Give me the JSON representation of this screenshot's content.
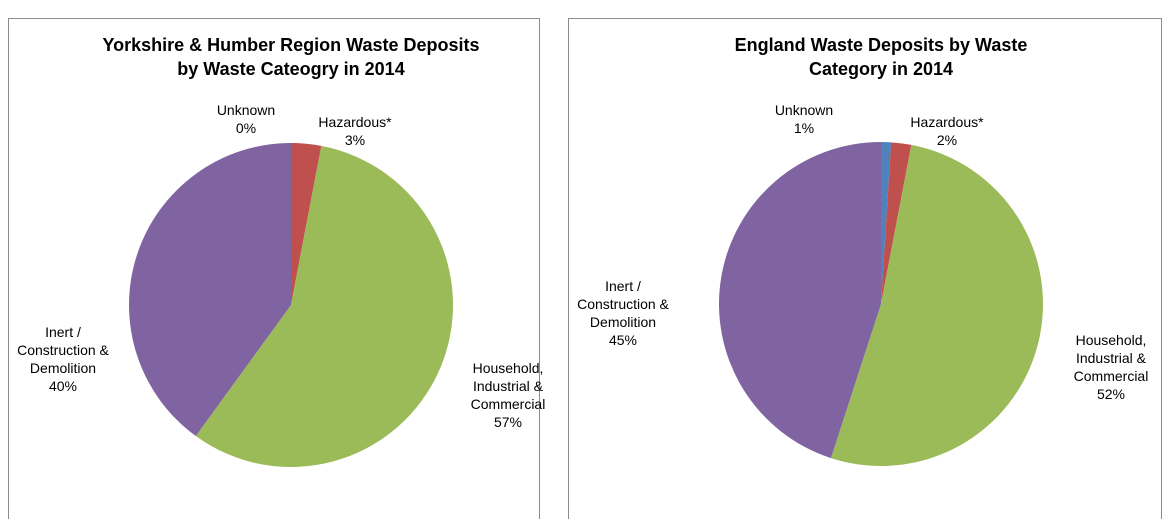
{
  "chart_data": [
    {
      "type": "pie",
      "title": "Yorkshire & Humber Region Waste Deposits by Waste Cateogry in 2014",
      "categories": [
        "Unknown",
        "Hazardous*",
        "Household, Industrial & Commercial",
        "Inert / Construction & Demolition"
      ],
      "values": [
        0,
        3,
        57,
        40
      ],
      "value_labels": [
        "0%",
        "3%",
        "57%",
        "40%"
      ],
      "colors": [
        "#4f81bd",
        "#c0504d",
        "#9bbb59",
        "#8064a2"
      ]
    },
    {
      "type": "pie",
      "title": "England Waste Deposits by Waste Category in 2014",
      "categories": [
        "Unknown",
        "Hazardous*",
        "Household, Industrial & Commercial",
        "Inert / Construction & Demolition"
      ],
      "values": [
        1,
        2,
        52,
        45
      ],
      "value_labels": [
        "1%",
        "2%",
        "52%",
        "45%"
      ],
      "colors": [
        "#4f81bd",
        "#c0504d",
        "#9bbb59",
        "#8064a2"
      ]
    }
  ]
}
